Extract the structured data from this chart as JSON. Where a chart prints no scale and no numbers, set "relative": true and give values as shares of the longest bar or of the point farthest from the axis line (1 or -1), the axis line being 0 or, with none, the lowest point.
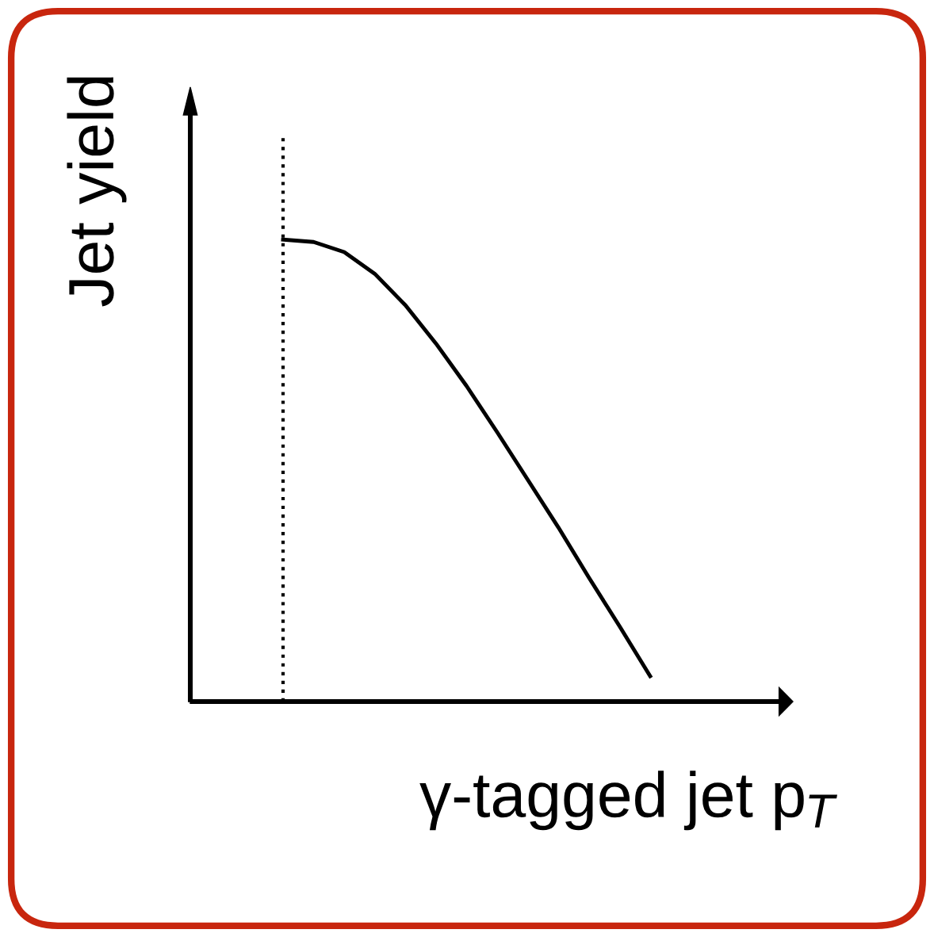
{
  "chart_data": {
    "type": "line",
    "relative": true,
    "xlabel": "γ-tagged jet p$_{T}$",
    "ylabel": "Jet yield",
    "categories": [
      null,
      null,
      null,
      null,
      null,
      null,
      null,
      null,
      null,
      null,
      null,
      null,
      null
    ],
    "series": [
      {
        "color": "#000000",
        "values": [
          1.0,
          0.995,
          0.973,
          0.926,
          0.858,
          0.775,
          0.683,
          0.583,
          0.48,
          0.377,
          0.268,
          0.163,
          0.055
        ]
      }
    ],
    "line_style": "solid",
    "marker": "none",
    "legend": false
  }
}
